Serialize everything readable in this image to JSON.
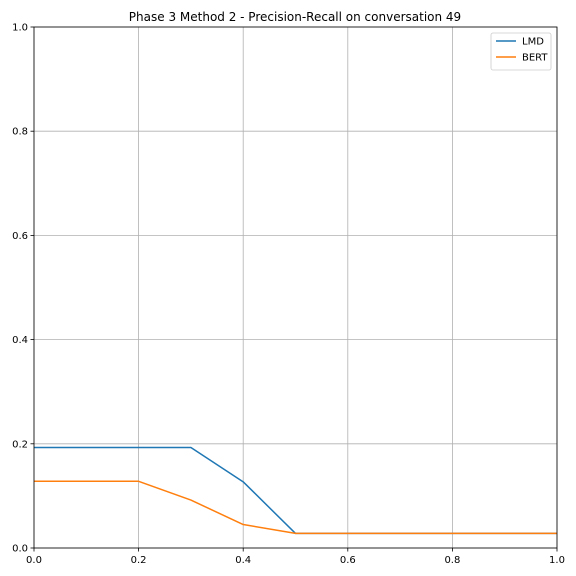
{
  "chart_data": {
    "type": "line",
    "title": "Phase 3 Method 2 - Precision-Recall on conversation 49",
    "xlabel": "",
    "ylabel": "",
    "xlim": [
      0.0,
      1.0
    ],
    "ylim": [
      0.0,
      1.0
    ],
    "grid": true,
    "legend_position": "top-right",
    "x_ticks": [
      "0.0",
      "0.2",
      "0.4",
      "0.6",
      "0.8",
      "1.0"
    ],
    "y_ticks": [
      "0.0",
      "0.2",
      "0.4",
      "0.6",
      "0.8",
      "1.0"
    ],
    "x": [
      0.0,
      0.1,
      0.2,
      0.3,
      0.4,
      0.5,
      0.6,
      0.7,
      0.8,
      0.9,
      1.0
    ],
    "series": [
      {
        "name": "LMD",
        "color": "#1f77b4",
        "values": [
          0.193,
          0.193,
          0.193,
          0.193,
          0.127,
          0.028,
          0.028,
          0.028,
          0.028,
          0.028,
          0.028
        ]
      },
      {
        "name": "BERT",
        "color": "#ff7f0e",
        "values": [
          0.128,
          0.128,
          0.128,
          0.092,
          0.045,
          0.028,
          0.028,
          0.028,
          0.028,
          0.028,
          0.028
        ]
      }
    ]
  }
}
